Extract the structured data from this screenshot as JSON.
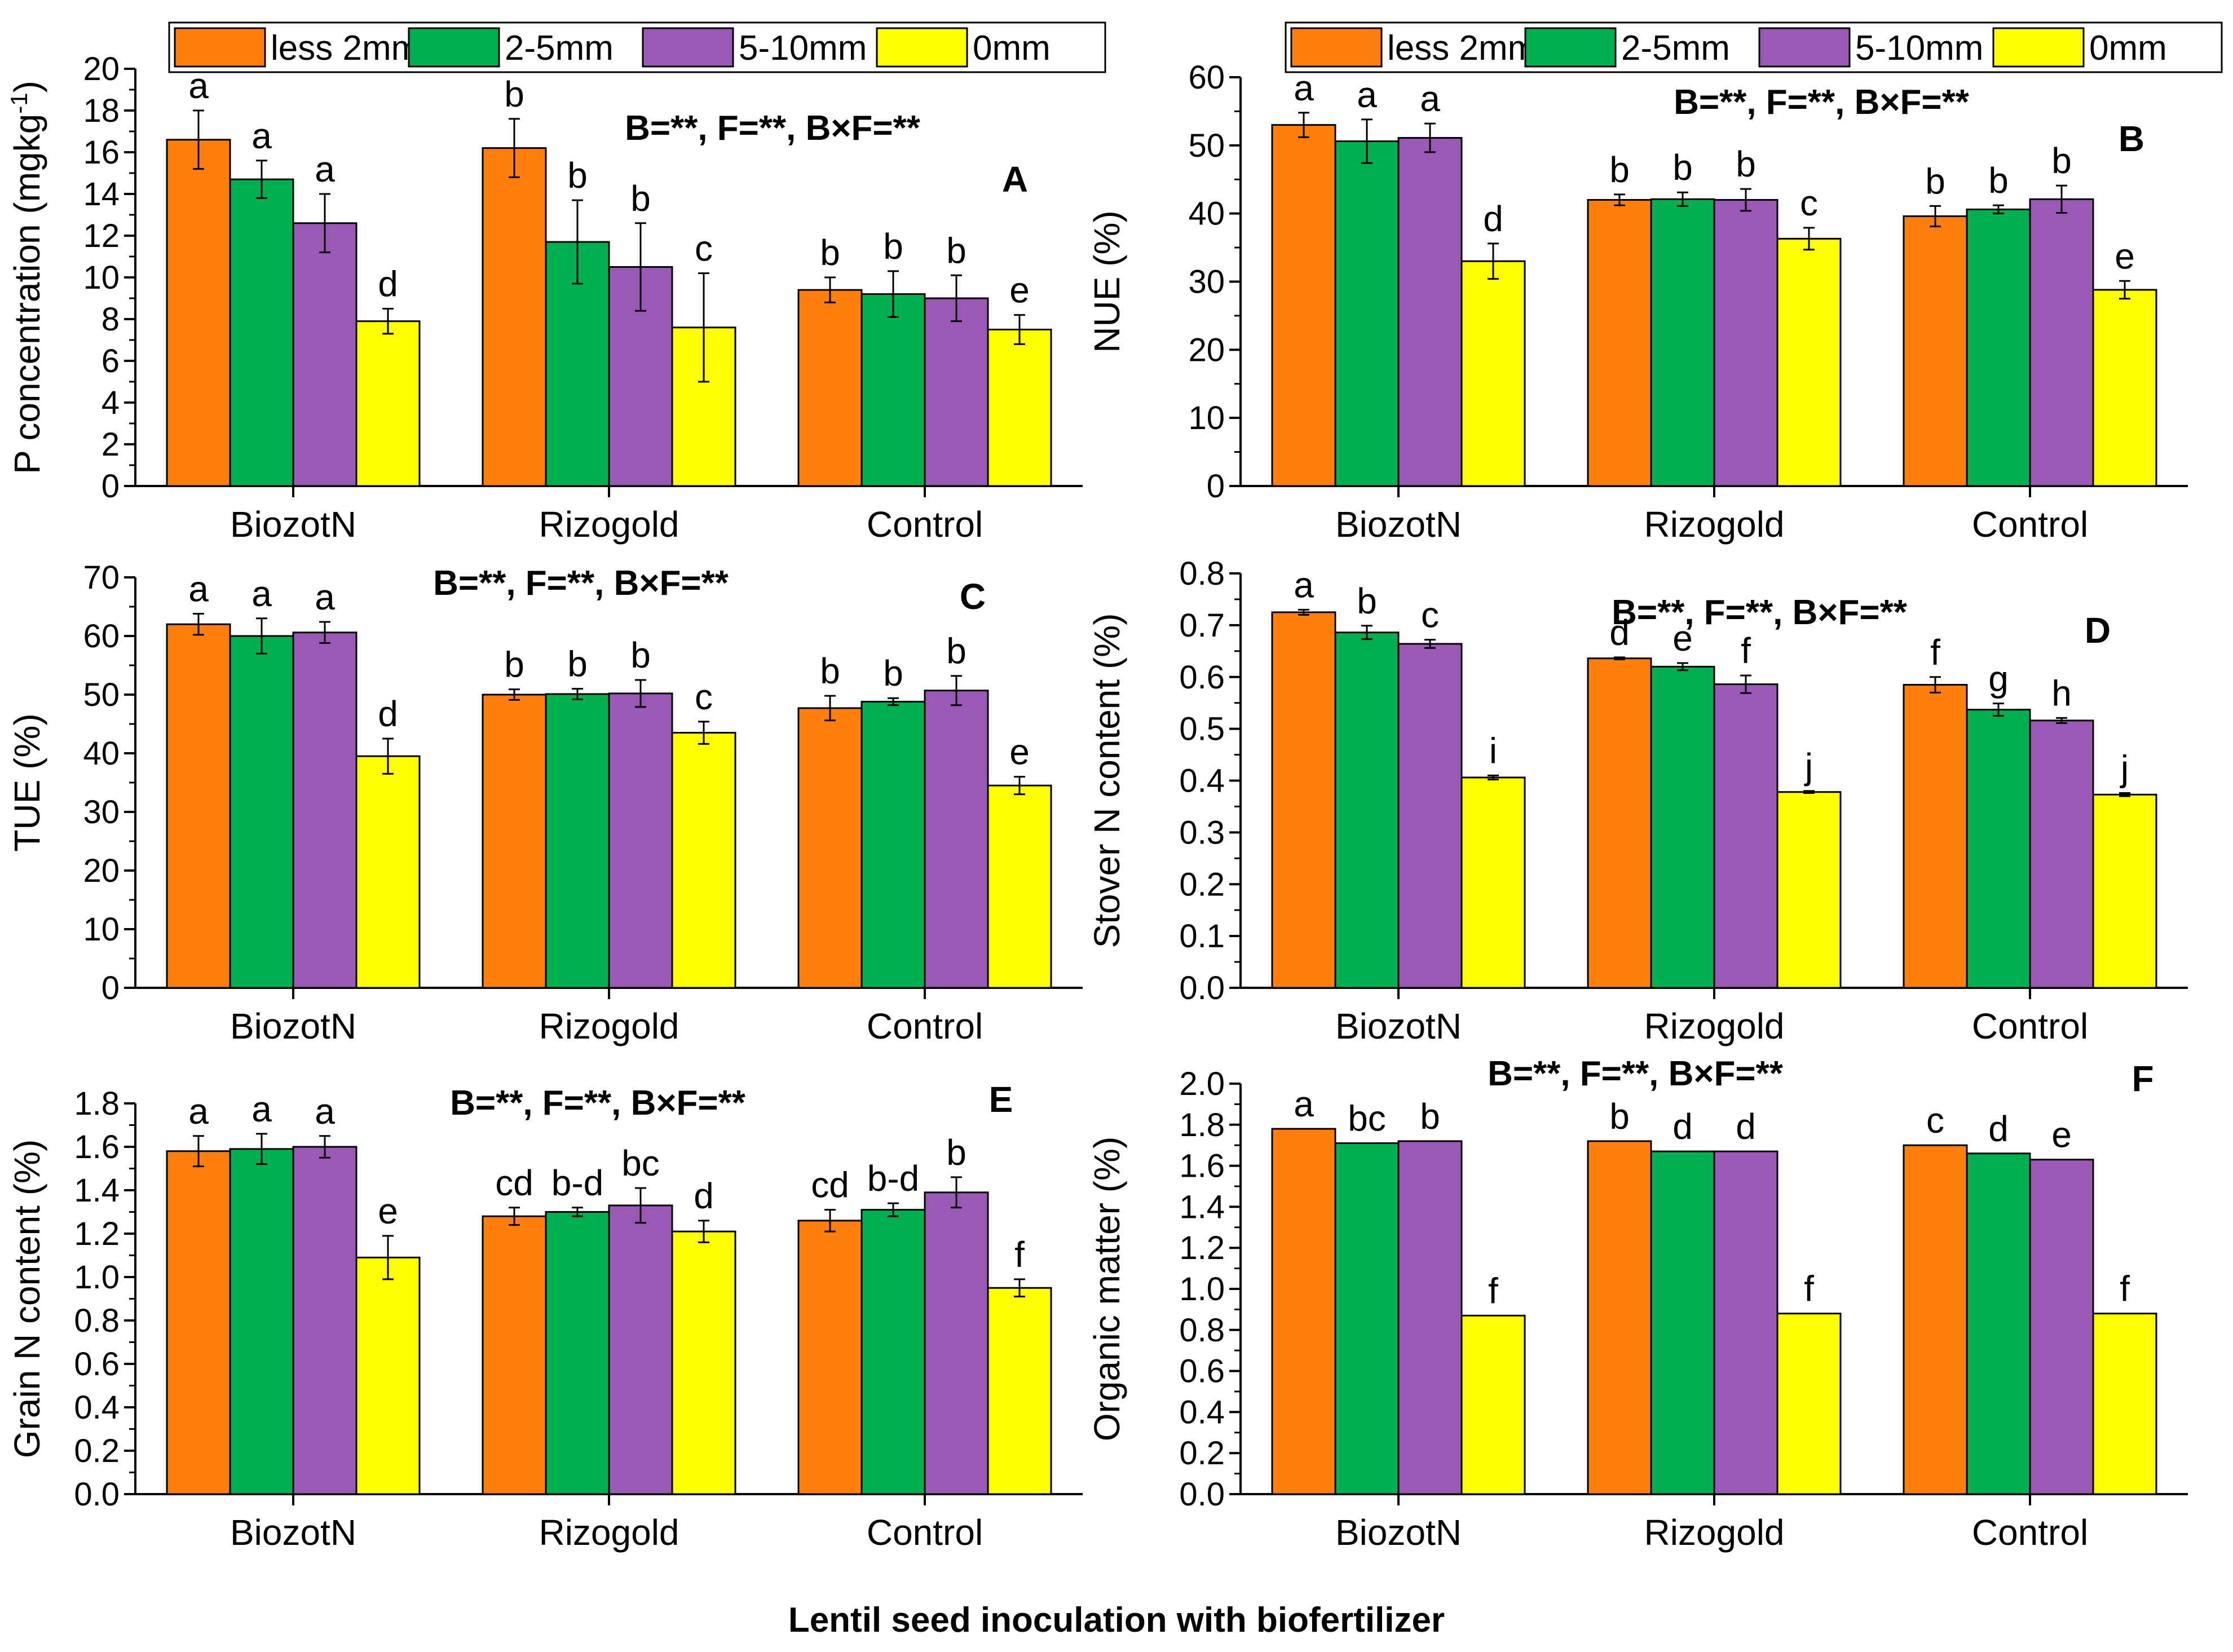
{
  "figure": {
    "xlabel": "Lentil seed inoculation with biofertilizer",
    "categories": [
      "BiozotN",
      "Rizogold",
      "Control"
    ],
    "legend": [
      "less 2mm",
      "2-5mm",
      "5-10mm",
      "0mm"
    ],
    "colors": [
      "#ff7f0e",
      "#00b050",
      "#9b59b6",
      "#ffff00"
    ]
  },
  "chart_data": [
    {
      "type": "bar",
      "panel": "A",
      "title": "",
      "stats": "B=**, F=**, B×F=**",
      "ylabel": "P concentration (mgkg",
      "ylabel_sup": "-1",
      "ylabel_end": ")",
      "ylim": [
        0,
        20
      ],
      "yticks": [
        "0",
        "2",
        "4",
        "6",
        "8",
        "10",
        "12",
        "14",
        "16",
        "18",
        "20"
      ],
      "legend_shown": true,
      "categories": [
        "BiozotN",
        "Rizogold",
        "Control"
      ],
      "series": [
        {
          "name": "less 2mm",
          "values": [
            16.6,
            16.2,
            9.4
          ],
          "errors": [
            1.4,
            1.4,
            0.6
          ],
          "letters": [
            "a",
            "b",
            "b"
          ]
        },
        {
          "name": "2-5mm",
          "values": [
            14.7,
            11.7,
            9.2
          ],
          "errors": [
            0.9,
            2.0,
            1.1
          ],
          "letters": [
            "a",
            "b",
            "b"
          ]
        },
        {
          "name": "5-10mm",
          "values": [
            12.6,
            10.5,
            9.0
          ],
          "errors": [
            1.4,
            2.1,
            1.1
          ],
          "letters": [
            "a",
            "b",
            "b"
          ]
        },
        {
          "name": "0mm",
          "values": [
            7.9,
            7.6,
            7.5
          ],
          "errors": [
            0.6,
            2.6,
            0.7
          ],
          "letters": [
            "d",
            "c",
            "e"
          ]
        }
      ]
    },
    {
      "type": "bar",
      "panel": "B",
      "stats": "B=**, F=**, B×F=**",
      "ylabel": "NUE (%)",
      "ylim": [
        0,
        60
      ],
      "yticks": [
        "0",
        "10",
        "20",
        "30",
        "40",
        "50",
        "60"
      ],
      "legend_shown": true,
      "categories": [
        "BiozotN",
        "Rizogold",
        "Control"
      ],
      "series": [
        {
          "name": "less 2mm",
          "values": [
            53.0,
            42.0,
            39.6
          ],
          "errors": [
            1.8,
            0.8,
            1.5
          ],
          "letters": [
            "a",
            "b",
            "b"
          ]
        },
        {
          "name": "2-5mm",
          "values": [
            50.6,
            42.1,
            40.6
          ],
          "errors": [
            3.2,
            1.0,
            0.6
          ],
          "letters": [
            "a",
            "b",
            "b"
          ]
        },
        {
          "name": "5-10mm",
          "values": [
            51.1,
            42.0,
            42.1
          ],
          "errors": [
            2.1,
            1.6,
            2.0
          ],
          "letters": [
            "a",
            "b",
            "b"
          ]
        },
        {
          "name": "0mm",
          "values": [
            33.0,
            36.3,
            28.8
          ],
          "errors": [
            2.6,
            1.6,
            1.3
          ],
          "letters": [
            "d",
            "c",
            "e"
          ]
        }
      ]
    },
    {
      "type": "bar",
      "panel": "C",
      "stats": "B=**, F=**, B×F=**",
      "ylabel": "TUE (%)",
      "ylim": [
        0,
        70
      ],
      "yticks": [
        "0",
        "10",
        "20",
        "30",
        "40",
        "50",
        "60",
        "70"
      ],
      "legend_shown": false,
      "categories": [
        "BiozotN",
        "Rizogold",
        "Control"
      ],
      "series": [
        {
          "name": "less 2mm",
          "values": [
            62.0,
            50.0,
            47.7
          ],
          "errors": [
            1.8,
            0.9,
            2.1
          ],
          "letters": [
            "a",
            "b",
            "b"
          ]
        },
        {
          "name": "2-5mm",
          "values": [
            60.0,
            50.1,
            48.8
          ],
          "errors": [
            3.0,
            0.9,
            0.6
          ],
          "letters": [
            "a",
            "b",
            "b"
          ]
        },
        {
          "name": "5-10mm",
          "values": [
            60.6,
            50.2,
            50.7
          ],
          "errors": [
            1.8,
            2.3,
            2.5
          ],
          "letters": [
            "a",
            "b",
            "b"
          ]
        },
        {
          "name": "0mm",
          "values": [
            39.5,
            43.5,
            34.5
          ],
          "errors": [
            3.0,
            1.9,
            1.5
          ],
          "letters": [
            "d",
            "c",
            "e"
          ]
        }
      ]
    },
    {
      "type": "bar",
      "panel": "D",
      "stats": "B=**, F=**, B×F=**",
      "ylabel": "Stover N content (%)",
      "ylim": [
        0,
        0.8
      ],
      "yticks": [
        "0.0",
        "0.1",
        "0.2",
        "0.3",
        "0.4",
        "0.5",
        "0.6",
        "0.7",
        "0.8"
      ],
      "legend_shown": false,
      "categories": [
        "BiozotN",
        "Rizogold",
        "Control"
      ],
      "series": [
        {
          "name": "less 2mm",
          "values": [
            0.725,
            0.636,
            0.585
          ],
          "errors": [
            0.005,
            0.002,
            0.015
          ],
          "letters": [
            "a",
            "d",
            "f"
          ]
        },
        {
          "name": "2-5mm",
          "values": [
            0.686,
            0.62,
            0.537
          ],
          "errors": [
            0.013,
            0.007,
            0.012
          ],
          "letters": [
            "b",
            "e",
            "g"
          ]
        },
        {
          "name": "5-10mm",
          "values": [
            0.664,
            0.586,
            0.516
          ],
          "errors": [
            0.008,
            0.017,
            0.005
          ],
          "letters": [
            "c",
            "f",
            "h"
          ]
        },
        {
          "name": "0mm",
          "values": [
            0.406,
            0.378,
            0.373
          ],
          "errors": [
            0.004,
            0.002,
            0.003
          ],
          "letters": [
            "i",
            "j",
            "j"
          ]
        }
      ]
    },
    {
      "type": "bar",
      "panel": "E",
      "stats": "B=**, F=**, B×F=**",
      "ylabel": "Grain N content (%)",
      "ylim": [
        0,
        1.8
      ],
      "yticks": [
        "0.0",
        "0.2",
        "0.4",
        "0.6",
        "0.8",
        "1.0",
        "1.2",
        "1.4",
        "1.6",
        "1.8"
      ],
      "legend_shown": false,
      "categories": [
        "BiozotN",
        "Rizogold",
        "Control"
      ],
      "series": [
        {
          "name": "less 2mm",
          "values": [
            1.58,
            1.28,
            1.26
          ],
          "errors": [
            0.07,
            0.04,
            0.05
          ],
          "letters": [
            "a",
            "cd",
            "cd"
          ]
        },
        {
          "name": "2-5mm",
          "values": [
            1.59,
            1.3,
            1.31
          ],
          "errors": [
            0.07,
            0.02,
            0.03
          ],
          "letters": [
            "a",
            "b-d",
            "b-d"
          ]
        },
        {
          "name": "5-10mm",
          "values": [
            1.6,
            1.33,
            1.39
          ],
          "errors": [
            0.05,
            0.08,
            0.07
          ],
          "letters": [
            "a",
            "bc",
            "b"
          ]
        },
        {
          "name": "0mm",
          "values": [
            1.09,
            1.21,
            0.95
          ],
          "errors": [
            0.1,
            0.05,
            0.04
          ],
          "letters": [
            "e",
            "d",
            "f"
          ]
        }
      ]
    },
    {
      "type": "bar",
      "panel": "F",
      "stats": "B=**, F=**, B×F=**",
      "ylabel": "Organic matter (%)",
      "ylim": [
        0,
        2.0
      ],
      "yticks": [
        "0.0",
        "0.2",
        "0.4",
        "0.6",
        "0.8",
        "1.0",
        "1.2",
        "1.4",
        "1.6",
        "1.8",
        "2.0"
      ],
      "legend_shown": false,
      "categories": [
        "BiozotN",
        "Rizogold",
        "Control"
      ],
      "series": [
        {
          "name": "less 2mm",
          "values": [
            1.78,
            1.72,
            1.7
          ],
          "errors": [
            0,
            0,
            0
          ],
          "letters": [
            "a",
            "b",
            "c"
          ]
        },
        {
          "name": "2-5mm",
          "values": [
            1.71,
            1.67,
            1.66
          ],
          "errors": [
            0,
            0,
            0
          ],
          "letters": [
            "bc",
            "d",
            "d"
          ]
        },
        {
          "name": "5-10mm",
          "values": [
            1.72,
            1.67,
            1.63
          ],
          "errors": [
            0,
            0,
            0
          ],
          "letters": [
            "b",
            "d",
            "e"
          ]
        },
        {
          "name": "0mm",
          "values": [
            0.87,
            0.88,
            0.88
          ],
          "errors": [
            0,
            0,
            0
          ],
          "letters": [
            "f",
            "f",
            "f"
          ]
        }
      ]
    }
  ]
}
